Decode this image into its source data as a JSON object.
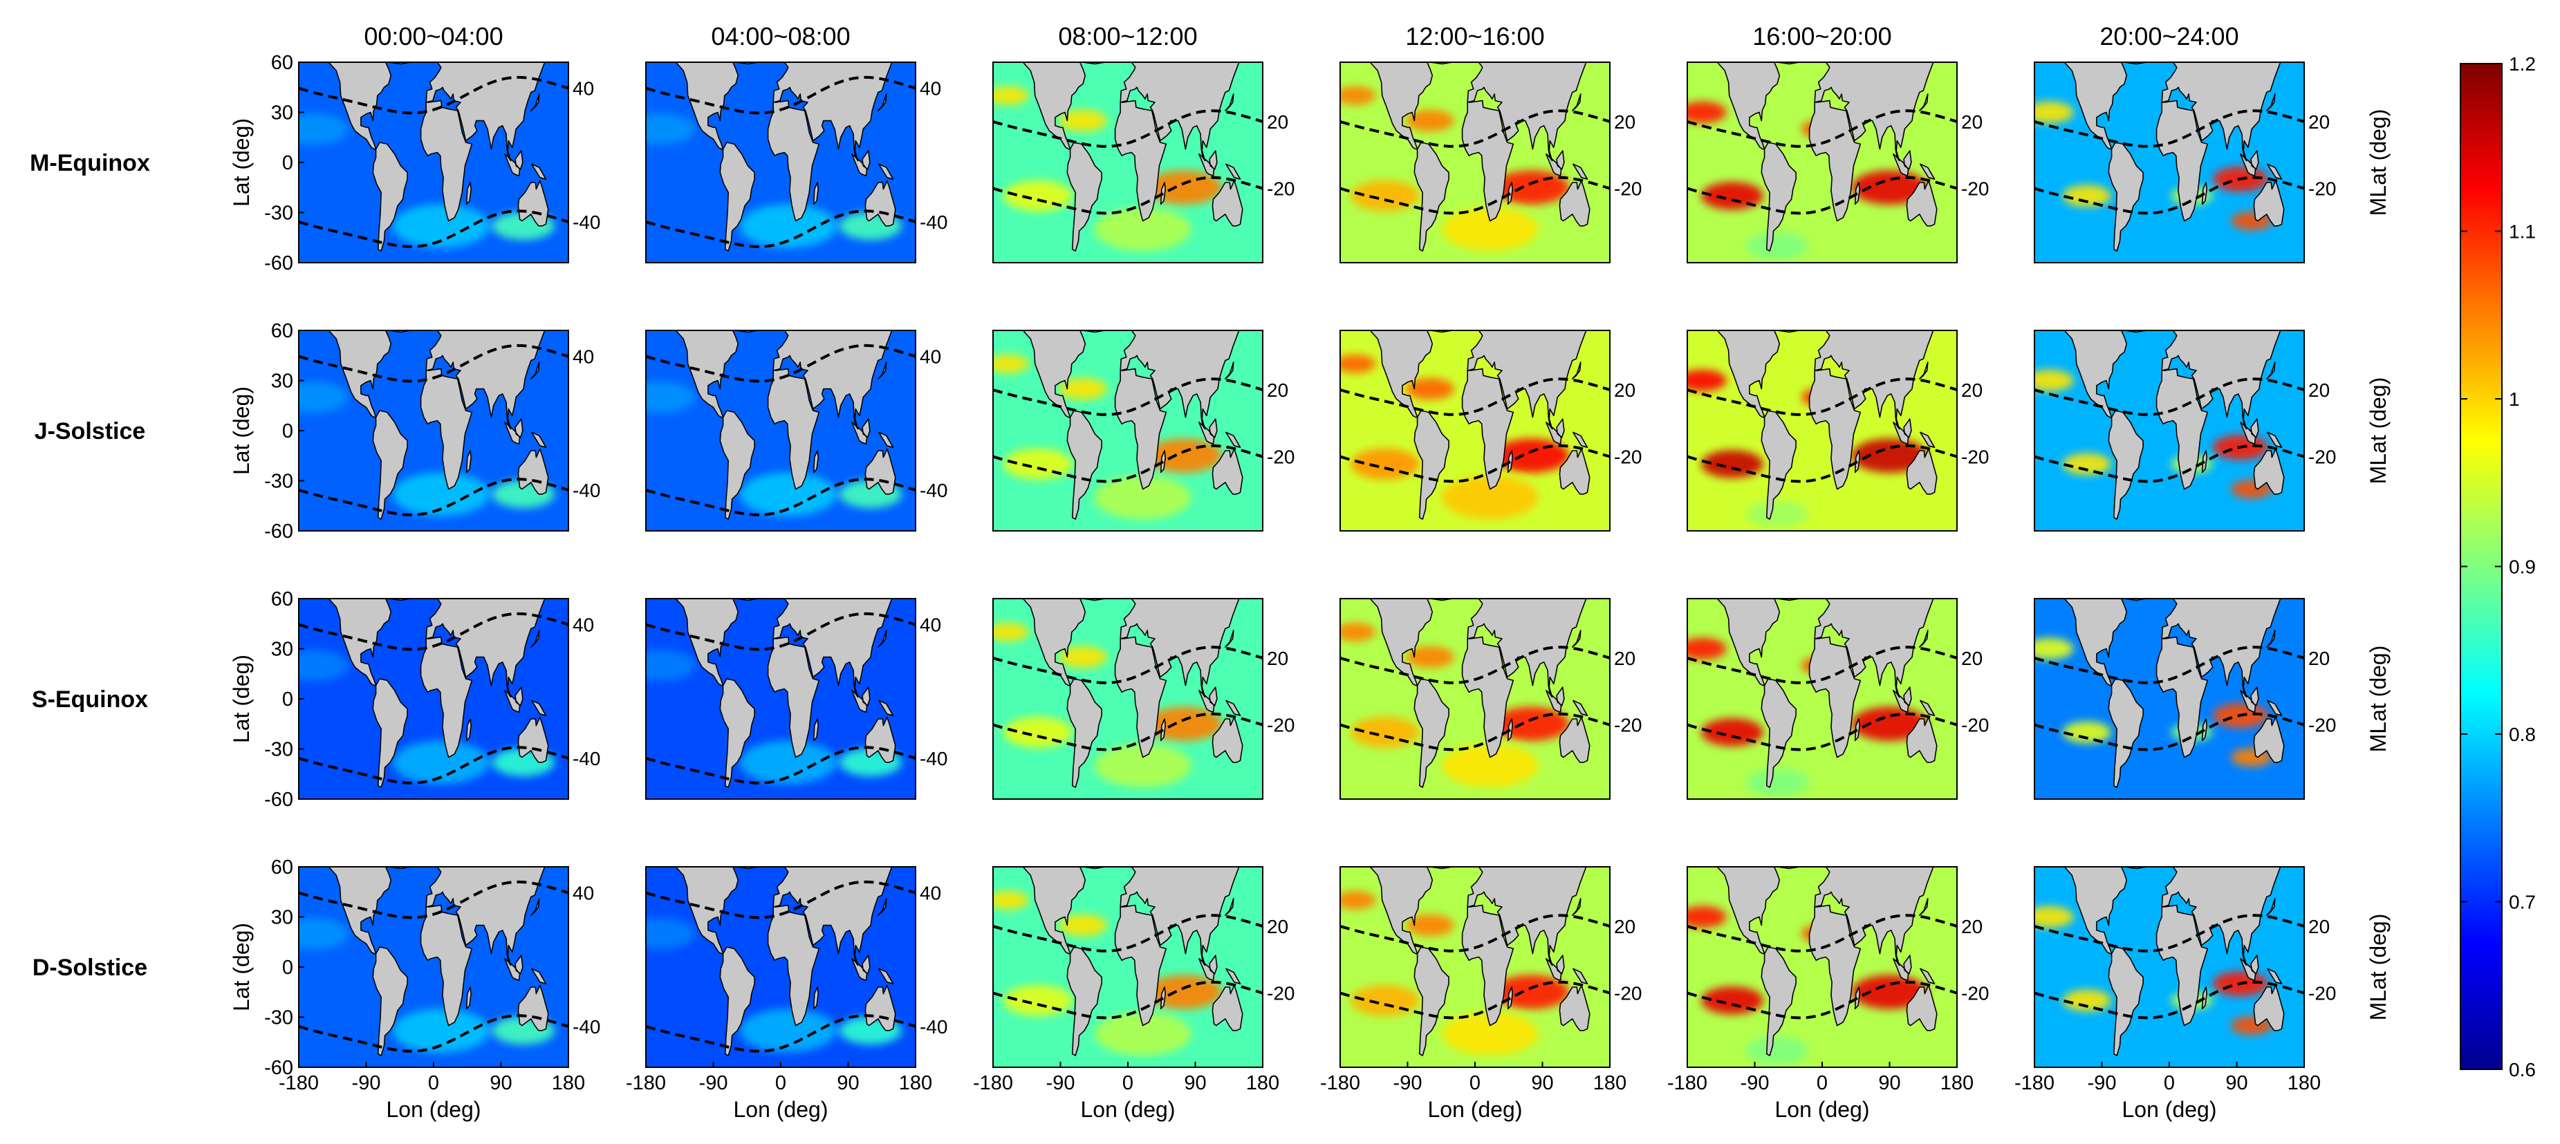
{
  "chart_data": {
    "type": "heatmap",
    "columns": [
      "00:00~04:00",
      "04:00~08:00",
      "08:00~12:00",
      "12:00~16:00",
      "16:00~20:00",
      "20:00~24:00"
    ],
    "rows": [
      "M-Equinox",
      "J-Solstice",
      "S-Equinox",
      "D-Solstice"
    ],
    "xlabel": "Lon (deg)",
    "ylabel": "Lat (deg)",
    "right_ylabel": "MLat (deg)",
    "x_ticks": [
      "-180",
      "-90",
      "0",
      "90",
      "180"
    ],
    "y_ticks": [
      "60",
      "30",
      "0",
      "-30",
      "-60"
    ],
    "xlim": [
      -180,
      180
    ],
    "ylim": [
      -60,
      60
    ],
    "mlat_labels": {
      "night": [
        "40",
        "-40"
      ],
      "day": [
        "20",
        "-20"
      ]
    },
    "colorbar": {
      "min": 0.6,
      "max": 1.2,
      "ticks": [
        "1.2",
        "1.1",
        "1",
        "0.9",
        "0.8",
        "0.7",
        "0.6"
      ],
      "colormap": "jet"
    },
    "land_color": "#c8c8c8",
    "panel_intensity": [
      [
        0.22,
        0.22,
        0.45,
        0.55,
        0.55,
        0.3
      ],
      [
        0.22,
        0.22,
        0.45,
        0.58,
        0.58,
        0.3
      ],
      [
        0.2,
        0.2,
        0.45,
        0.55,
        0.55,
        0.25
      ],
      [
        0.22,
        0.2,
        0.45,
        0.55,
        0.55,
        0.3
      ]
    ]
  }
}
